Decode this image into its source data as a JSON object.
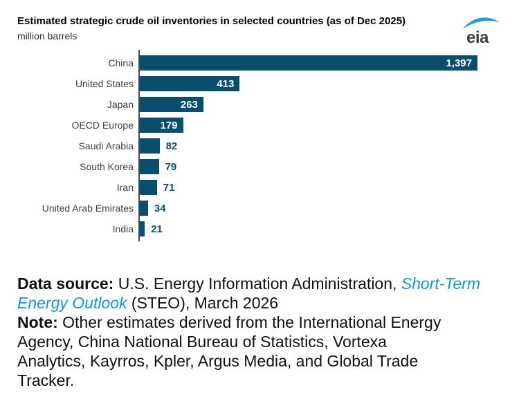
{
  "header": {
    "title": "Estimated strategic crude oil inventories in selected countries (as of Dec 2025)",
    "subtitle": "million barrels",
    "logo_text": "eia"
  },
  "chart_data": {
    "type": "bar",
    "orientation": "horizontal",
    "title": "Estimated strategic crude oil inventories in selected countries (as of Dec 2025)",
    "xlabel": "million barrels",
    "categories": [
      "China",
      "United States",
      "Japan",
      "OECD Europe",
      "Saudi Arabia",
      "South Korea",
      "Iran",
      "United Arab Emirates",
      "India"
    ],
    "values": [
      1397,
      413,
      263,
      179,
      82,
      79,
      71,
      34,
      21
    ],
    "values_display": [
      "1,397",
      "413",
      "263",
      "179",
      "82",
      "79",
      "71",
      "34",
      "21"
    ],
    "xlim": [
      0,
      1400
    ],
    "grid": false,
    "legend": false,
    "bar_color": "#0a4e6d",
    "value_label_inside_color": "#ffffff",
    "value_label_outside_color": "#0a4e6d"
  },
  "footer": {
    "data_source_label": "Data source:",
    "data_source_pre": " U.S. Energy Information Administration, ",
    "steo_link": "Short-Term Energy Outlook",
    "data_source_post": " (STEO), March 2026",
    "note_label": "Note:",
    "note_text": " Other estimates derived from the International Energy\nAgency, China National Bureau of Statistics, Vortexa\nAnalytics, Kayrros, Kpler, Argus Media, and Global Trade\nTracker."
  },
  "colors": {
    "bar": "#0a4e6d",
    "axis": "#4a4a4a",
    "link_blue": "#1496d3",
    "swoosh_blue": "#1e9ad6",
    "logo_text": "#3f3f3f"
  }
}
